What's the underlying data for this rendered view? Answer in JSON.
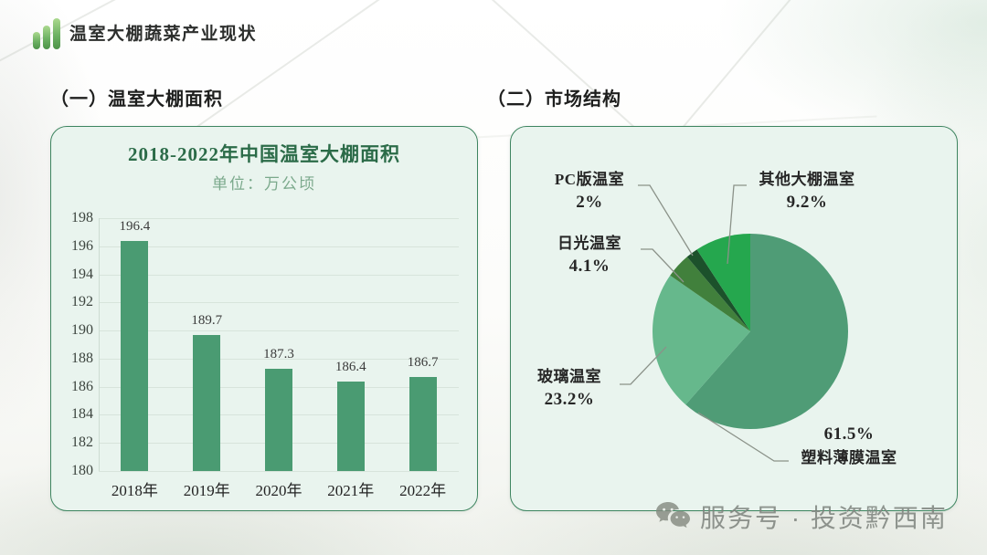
{
  "header": {
    "title": "温室大棚蔬菜产业现状"
  },
  "sections": {
    "left": {
      "heading": "（一）温室大棚面积"
    },
    "right": {
      "heading": "（二）市场结构"
    }
  },
  "watermark": {
    "icon": "wechat-icon",
    "text": "服务号 · 投资黔西南"
  },
  "accent_green": "#3e8560",
  "chart_data": [
    {
      "type": "bar",
      "title": "2018-2022年中国温室大棚面积",
      "subtitle": "单位：万公顷",
      "categories": [
        "2018年",
        "2019年",
        "2020年",
        "2021年",
        "2022年"
      ],
      "values": [
        196.4,
        189.7,
        187.3,
        186.4,
        186.7
      ],
      "value_labels": [
        "196.4",
        "189.7",
        "187.3",
        "186.4",
        "186.7"
      ],
      "xlabel": "",
      "ylabel": "",
      "ylim": [
        180,
        198
      ],
      "yticks": [
        198,
        196,
        194,
        192,
        190,
        188,
        186,
        184,
        182,
        180
      ],
      "grid": true,
      "bar_color": "#4a9b72"
    },
    {
      "type": "pie",
      "title": "市场结构",
      "start_angle": "12-o-clock, clockwise",
      "slices": [
        {
          "label": "塑料薄膜温室",
          "value": 61.5,
          "display": "61.5%",
          "color": "#4f9c76"
        },
        {
          "label": "玻璃温室",
          "value": 23.2,
          "display": "23.2%",
          "color": "#66b88c"
        },
        {
          "label": "日光温室",
          "value": 4.1,
          "display": "4.1%",
          "color": "#41803c"
        },
        {
          "label": "PC版温室",
          "value": 2.0,
          "display": "2%",
          "color": "#1c512b"
        },
        {
          "label": "其他大棚温室",
          "value": 9.2,
          "display": "9.2%",
          "color": "#25a74e"
        }
      ],
      "legend_position": "callout-labels"
    }
  ]
}
